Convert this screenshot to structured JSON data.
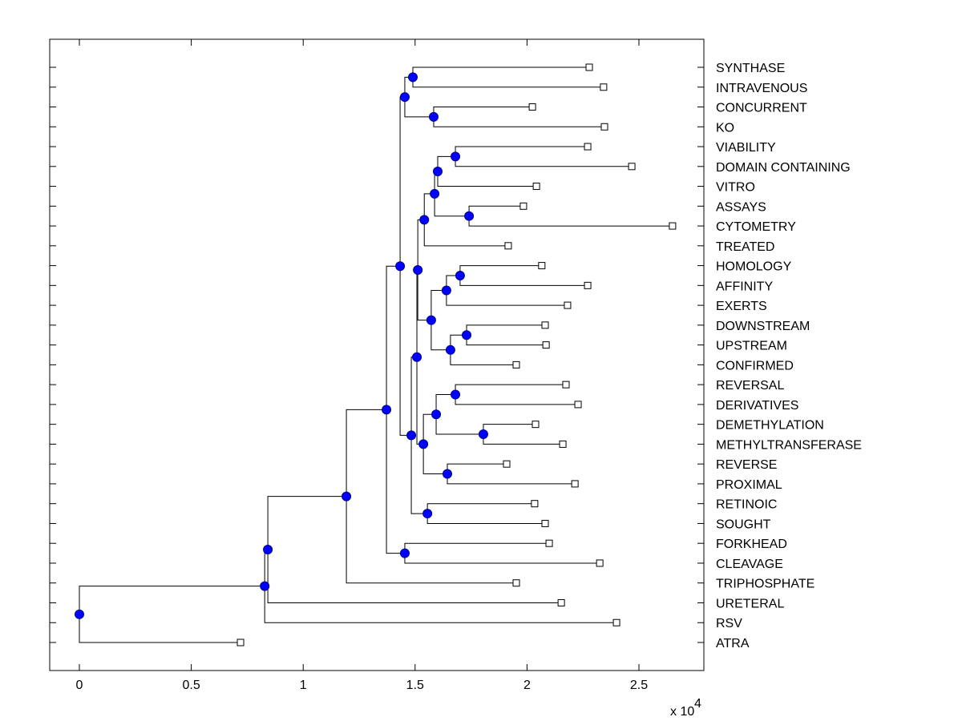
{
  "chart_data": {
    "type": "dendrogram",
    "title": "",
    "xlabel": "",
    "ylabel": "",
    "x_multiplier_label": "x 10",
    "x_multiplier_exponent": "4",
    "xlim": [
      -1300,
      27900
    ],
    "xticks": [
      0,
      5000,
      10000,
      15000,
      20000,
      25000
    ],
    "xtick_labels": [
      "0",
      "0.5",
      "1",
      "1.5",
      "2",
      "2.5"
    ],
    "grid": false,
    "colors": {
      "internal_node": "#0000ff",
      "leaf_fill": "#ffffff",
      "line": "#000000"
    },
    "leaves": [
      {
        "id": "SYNTHASE",
        "label": "SYNTHASE",
        "x": 22780
      },
      {
        "id": "INTRAVENOUS",
        "label": "INTRAVENOUS",
        "x": 23420
      },
      {
        "id": "CONCURRENT",
        "label": "CONCURRENT",
        "x": 20240
      },
      {
        "id": "KO",
        "label": "KO",
        "x": 23460
      },
      {
        "id": "VIABILITY",
        "label": "VIABILITY",
        "x": 22710
      },
      {
        "id": "DOMAIN_CONTAINING",
        "label": "DOMAIN CONTAINING",
        "x": 24680
      },
      {
        "id": "VITRO",
        "label": "VITRO",
        "x": 20420
      },
      {
        "id": "ASSAYS",
        "label": "ASSAYS",
        "x": 19840
      },
      {
        "id": "CYTOMETRY",
        "label": "CYTOMETRY",
        "x": 26500
      },
      {
        "id": "TREATED",
        "label": "TREATED",
        "x": 19160
      },
      {
        "id": "HOMOLOGY",
        "label": "HOMOLOGY",
        "x": 20660
      },
      {
        "id": "AFFINITY",
        "label": "AFFINITY",
        "x": 22710
      },
      {
        "id": "EXERTS",
        "label": "EXERTS",
        "x": 21810
      },
      {
        "id": "DOWNSTREAM",
        "label": "DOWNSTREAM",
        "x": 20810
      },
      {
        "id": "UPSTREAM",
        "label": "UPSTREAM",
        "x": 20850
      },
      {
        "id": "CONFIRMED",
        "label": "CONFIRMED",
        "x": 19520
      },
      {
        "id": "REVERSAL",
        "label": "REVERSAL",
        "x": 21740
      },
      {
        "id": "DERIVATIVES",
        "label": "DERIVATIVES",
        "x": 22280
      },
      {
        "id": "DEMETHYLATION",
        "label": "DEMETHYLATION",
        "x": 20380
      },
      {
        "id": "METHYLTRANSFERASE",
        "label": "METHYLTRANSFERASE",
        "x": 21600
      },
      {
        "id": "REVERSE",
        "label": "REVERSE",
        "x": 19090
      },
      {
        "id": "PROXIMAL",
        "label": "PROXIMAL",
        "x": 22140
      },
      {
        "id": "RETINOIC",
        "label": "RETINOIC",
        "x": 20340
      },
      {
        "id": "SOUGHT",
        "label": "SOUGHT",
        "x": 20810
      },
      {
        "id": "FORKHEAD",
        "label": "FORKHEAD",
        "x": 20990
      },
      {
        "id": "CLEAVAGE",
        "label": "CLEAVAGE",
        "x": 23250
      },
      {
        "id": "TRIPHOSPHATE",
        "label": "TRIPHOSPHATE",
        "x": 19520
      },
      {
        "id": "URETERAL",
        "label": "URETERAL",
        "x": 21530
      },
      {
        "id": "RSV",
        "label": "RSV",
        "x": 24000
      },
      {
        "id": "ATRA",
        "label": "ATRA",
        "x": 7200
      }
    ],
    "nodes": [
      {
        "id": "n_si",
        "x": 14900,
        "children": [
          "SYNTHASE",
          "INTRAVENOUS"
        ]
      },
      {
        "id": "n_ck",
        "x": 15830,
        "children": [
          "CONCURRENT",
          "KO"
        ]
      },
      {
        "id": "n_f",
        "x": 14540,
        "children": [
          "n_si",
          "n_ck"
        ]
      },
      {
        "id": "n_vd",
        "x": 16800,
        "children": [
          "VIABILITY",
          "DOMAIN_CONTAINING"
        ]
      },
      {
        "id": "n_q",
        "x": 16010,
        "children": [
          "n_vd",
          "VITRO"
        ]
      },
      {
        "id": "n_ac",
        "x": 17410,
        "children": [
          "ASSAYS",
          "CYTOMETRY"
        ]
      },
      {
        "id": "n_p",
        "x": 15870,
        "children": [
          "n_q",
          "n_ac"
        ]
      },
      {
        "id": "n_i",
        "x": 15410,
        "children": [
          "n_p",
          "TREATED"
        ]
      },
      {
        "id": "n_ha",
        "x": 17010,
        "children": [
          "HOMOLOGY",
          "AFFINITY"
        ]
      },
      {
        "id": "n_hae",
        "x": 16400,
        "children": [
          "n_ha",
          "EXERTS"
        ]
      },
      {
        "id": "n_du",
        "x": 17300,
        "children": [
          "DOWNSTREAM",
          "UPSTREAM"
        ]
      },
      {
        "id": "n_duc",
        "x": 16580,
        "children": [
          "n_du",
          "CONFIRMED"
        ]
      },
      {
        "id": "n_k",
        "x": 15720,
        "children": [
          "n_hae",
          "n_duc"
        ]
      },
      {
        "id": "n_h",
        "x": 15120,
        "children": [
          "n_i",
          "n_k"
        ]
      },
      {
        "id": "n_rd",
        "x": 16800,
        "children": [
          "REVERSAL",
          "DERIVATIVES"
        ]
      },
      {
        "id": "n_dm",
        "x": 18050,
        "children": [
          "DEMETHYLATION",
          "METHYLTRANSFERASE"
        ]
      },
      {
        "id": "n_n",
        "x": 15940,
        "children": [
          "n_rd",
          "n_dm"
        ]
      },
      {
        "id": "n_pr",
        "x": 16440,
        "children": [
          "REVERSE",
          "PROXIMAL"
        ]
      },
      {
        "id": "n_m",
        "x": 15370,
        "children": [
          "n_n",
          "n_pr"
        ]
      },
      {
        "id": "n_l",
        "x": 15080,
        "children": [
          "n_h",
          "n_m"
        ]
      },
      {
        "id": "n_rs",
        "x": 15550,
        "children": [
          "RETINOIC",
          "SOUGHT"
        ]
      },
      {
        "id": "n_g",
        "x": 14830,
        "children": [
          "n_l",
          "n_rs"
        ]
      },
      {
        "id": "n_e",
        "x": 14330,
        "children": [
          "n_f",
          "n_g"
        ]
      },
      {
        "id": "n_fc",
        "x": 14540,
        "children": [
          "FORKHEAD",
          "CLEAVAGE"
        ]
      },
      {
        "id": "n_d",
        "x": 13720,
        "children": [
          "n_e",
          "n_fc"
        ]
      },
      {
        "id": "n_c",
        "x": 11930,
        "children": [
          "n_d",
          "TRIPHOSPHATE"
        ]
      },
      {
        "id": "n_b",
        "x": 8420,
        "children": [
          "n_c",
          "URETERAL"
        ]
      },
      {
        "id": "n_a",
        "x": 8280,
        "children": [
          "n_b",
          "RSV"
        ]
      },
      {
        "id": "root",
        "x": 0,
        "children": [
          "ATRA",
          "n_a"
        ]
      }
    ]
  }
}
